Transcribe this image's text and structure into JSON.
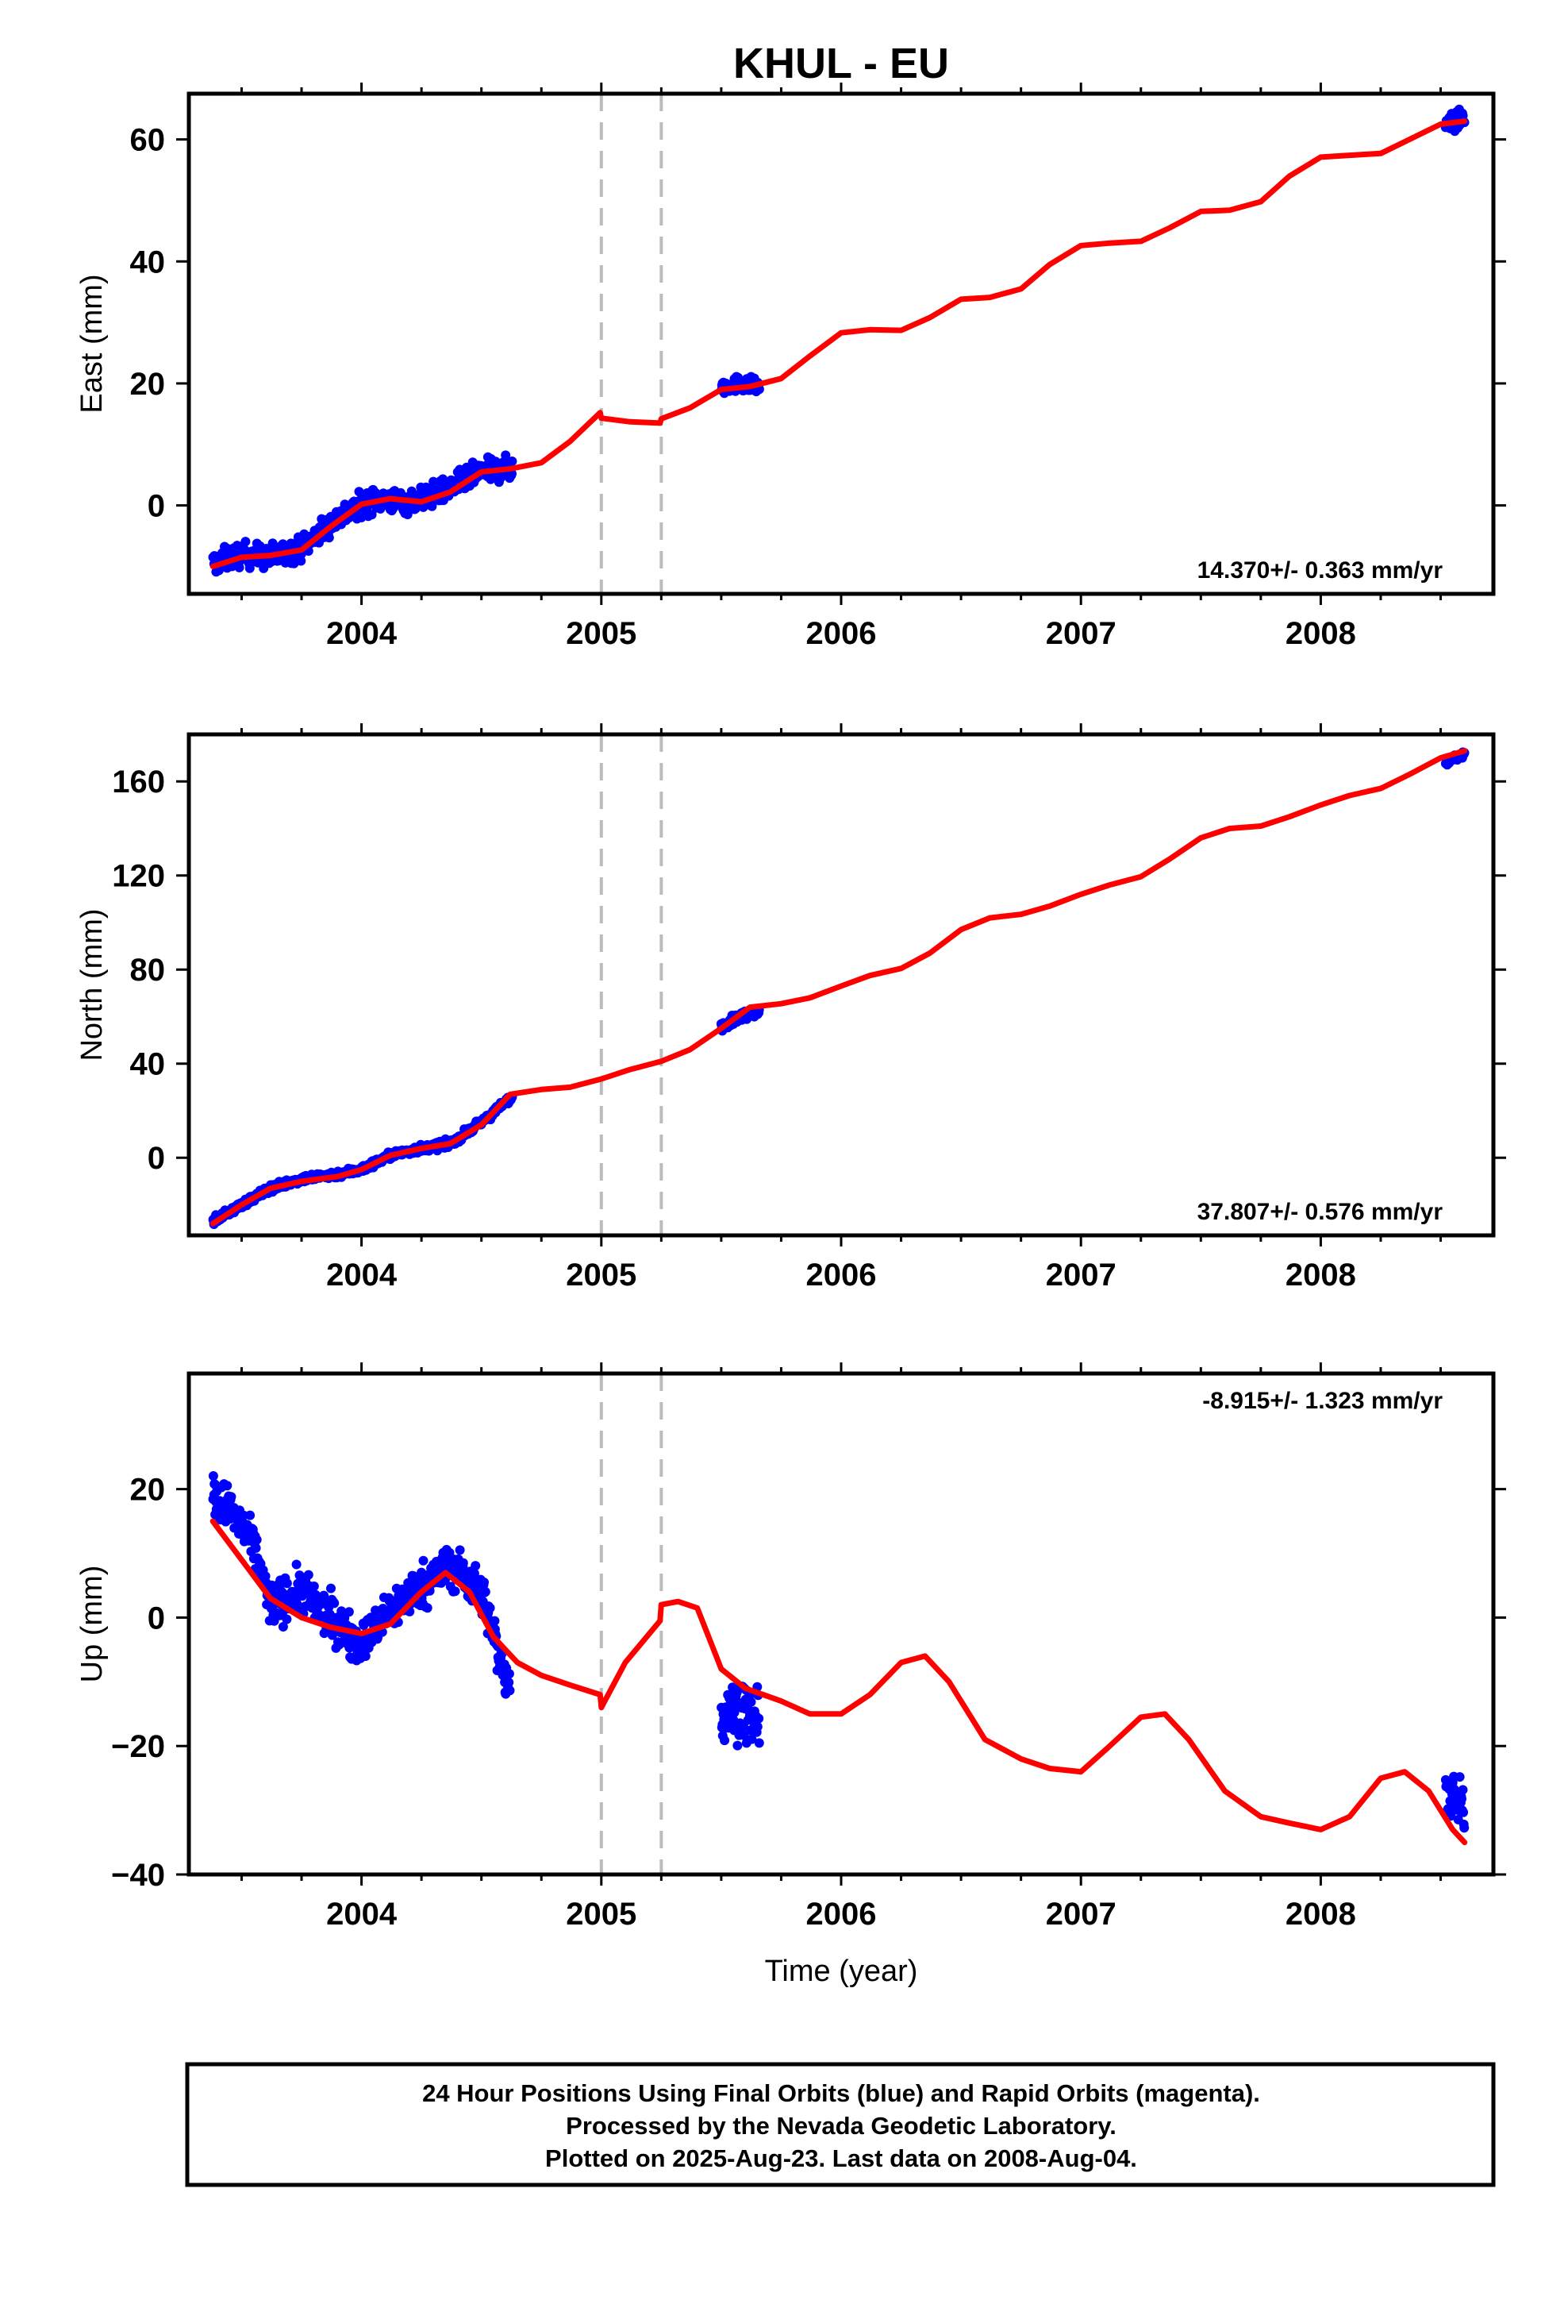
{
  "title": "KHUL - EU",
  "x_axis_label": "Time (year)",
  "footer": [
    "24 Hour Positions Using Final Orbits (blue) and Rapid Orbits (magenta).",
    "Processed by the Nevada Geodetic Laboratory.",
    "Plotted on 2025-Aug-23. Last data on 2008-Aug-04."
  ],
  "colors": {
    "final_orbits": "#0000ff",
    "model_fit": "#ff0000",
    "breaks": "#bbbbbb",
    "frame": "#000000"
  },
  "chart_data": [
    {
      "type": "scatter",
      "component": "east",
      "ylabel": "East (mm)",
      "xlim": [
        2003.28,
        2008.72
      ],
      "ylim": [
        -14.5,
        67.5
      ],
      "xticks": [
        "2004",
        "2005",
        "2006",
        "2007",
        "2008"
      ],
      "yticks": [
        "0",
        "20",
        "40",
        "60"
      ],
      "rate_label": "14.370+/- 0.363 mm/yr",
      "rate_position": "bottom-right",
      "break_lines": [
        2005.0,
        2005.25
      ],
      "series": [
        {
          "style": "points",
          "segments": [
            {
              "x_range": [
                2003.38,
                2004.63
              ],
              "anchors": [
                [
                  2003.38,
                  -9.5
                ],
                [
                  2003.5,
                  -8
                ],
                [
                  2003.62,
                  -8.5
                ],
                [
                  2003.75,
                  -7
                ],
                [
                  2003.9,
                  -2
                ],
                [
                  2004.05,
                  1
                ],
                [
                  2004.2,
                  0.5
                ],
                [
                  2004.35,
                  2.5
                ],
                [
                  2004.5,
                  5.5
                ],
                [
                  2004.63,
                  6
                ]
              ],
              "noise": 2.4
            },
            {
              "x_range": [
                2005.5,
                2005.66
              ],
              "anchors": [
                [
                  2005.5,
                  19.5
                ],
                [
                  2005.58,
                  20
                ],
                [
                  2005.66,
                  19.5
                ]
              ],
              "noise": 1.6
            },
            {
              "x_range": [
                2008.52,
                2008.6
              ],
              "anchors": [
                [
                  2008.52,
                  62.5
                ],
                [
                  2008.6,
                  63.5
                ]
              ],
              "noise": 1.8
            }
          ]
        },
        {
          "style": "line",
          "points": [
            [
              2003.38,
              -10
            ],
            [
              2003.5,
              -8.5
            ],
            [
              2003.62,
              -8.2
            ],
            [
              2003.75,
              -7.3
            ],
            [
              2003.87,
              -3.5
            ],
            [
              2004.0,
              0.2
            ],
            [
              2004.12,
              1.1
            ],
            [
              2004.25,
              0.6
            ],
            [
              2004.37,
              2.2
            ],
            [
              2004.5,
              5.5
            ],
            [
              2004.62,
              6
            ],
            [
              2004.75,
              7
            ],
            [
              2004.87,
              10.5
            ],
            [
              2004.995,
              15.2
            ],
            [
              2005.0,
              14.3
            ],
            [
              2005.12,
              13.7
            ],
            [
              2005.245,
              13.5
            ],
            [
              2005.25,
              14.2
            ],
            [
              2005.37,
              16
            ],
            [
              2005.5,
              19
            ],
            [
              2005.62,
              19.5
            ],
            [
              2005.75,
              20.8
            ],
            [
              2005.87,
              24.5
            ],
            [
              2006.0,
              28.3
            ],
            [
              2006.12,
              28.8
            ],
            [
              2006.25,
              28.7
            ],
            [
              2006.37,
              30.8
            ],
            [
              2006.5,
              33.8
            ],
            [
              2006.62,
              34.1
            ],
            [
              2006.75,
              35.5
            ],
            [
              2006.87,
              39.5
            ],
            [
              2007.0,
              42.6
            ],
            [
              2007.12,
              43
            ],
            [
              2007.25,
              43.3
            ],
            [
              2007.37,
              45.5
            ],
            [
              2007.5,
              48.2
            ],
            [
              2007.62,
              48.4
            ],
            [
              2007.75,
              49.8
            ],
            [
              2007.87,
              54
            ],
            [
              2008.0,
              57.1
            ],
            [
              2008.12,
              57.4
            ],
            [
              2008.25,
              57.7
            ],
            [
              2008.37,
              60
            ],
            [
              2008.5,
              62.5
            ],
            [
              2008.6,
              63
            ]
          ]
        }
      ]
    },
    {
      "type": "scatter",
      "component": "north",
      "ylabel": "North (mm)",
      "xlim": [
        2003.28,
        2008.72
      ],
      "ylim": [
        -33,
        180
      ],
      "xticks": [
        "2004",
        "2005",
        "2006",
        "2007",
        "2008"
      ],
      "yticks": [
        "0",
        "40",
        "80",
        "120",
        "160"
      ],
      "rate_label": "37.807+/- 0.576 mm/yr",
      "rate_position": "bottom-right",
      "break_lines": [
        2005.0,
        2005.25
      ],
      "series": [
        {
          "style": "points",
          "segments": [
            {
              "x_range": [
                2003.38,
                2004.63
              ],
              "anchors": [
                [
                  2003.38,
                  -27
                ],
                [
                  2003.5,
                  -20
                ],
                [
                  2003.62,
                  -13
                ],
                [
                  2003.75,
                  -9
                ],
                [
                  2003.9,
                  -7
                ],
                [
                  2004.0,
                  -5
                ],
                [
                  2004.12,
                  1
                ],
                [
                  2004.25,
                  4
                ],
                [
                  2004.37,
                  6
                ],
                [
                  2004.5,
                  15
                ],
                [
                  2004.63,
                  26
                ]
              ],
              "noise": 2.0
            },
            {
              "x_range": [
                2005.5,
                2005.66
              ],
              "anchors": [
                [
                  2005.5,
                  56
                ],
                [
                  2005.58,
                  60
                ],
                [
                  2005.66,
                  63
                ]
              ],
              "noise": 2.4
            },
            {
              "x_range": [
                2008.52,
                2008.6
              ],
              "anchors": [
                [
                  2008.52,
                  168
                ],
                [
                  2008.6,
                  172
                ]
              ],
              "noise": 2.0
            }
          ]
        },
        {
          "style": "line",
          "points": [
            [
              2003.38,
              -28
            ],
            [
              2003.5,
              -20
            ],
            [
              2003.62,
              -13
            ],
            [
              2003.75,
              -10
            ],
            [
              2003.9,
              -8
            ],
            [
              2004.0,
              -5
            ],
            [
              2004.12,
              1
            ],
            [
              2004.25,
              4
            ],
            [
              2004.37,
              6
            ],
            [
              2004.5,
              14
            ],
            [
              2004.62,
              27
            ],
            [
              2004.75,
              29
            ],
            [
              2004.87,
              30
            ],
            [
              2005.0,
              33.5
            ],
            [
              2005.12,
              37.5
            ],
            [
              2005.25,
              41
            ],
            [
              2005.37,
              46
            ],
            [
              2005.5,
              55
            ],
            [
              2005.62,
              64
            ],
            [
              2005.75,
              65.5
            ],
            [
              2005.87,
              68
            ],
            [
              2006.0,
              73
            ],
            [
              2006.12,
              77.5
            ],
            [
              2006.25,
              80.5
            ],
            [
              2006.37,
              87
            ],
            [
              2006.5,
              97
            ],
            [
              2006.62,
              102
            ],
            [
              2006.75,
              103.5
            ],
            [
              2006.87,
              107
            ],
            [
              2007.0,
              112
            ],
            [
              2007.12,
              116
            ],
            [
              2007.25,
              119.5
            ],
            [
              2007.37,
              127
            ],
            [
              2007.5,
              136
            ],
            [
              2007.62,
              140
            ],
            [
              2007.75,
              141
            ],
            [
              2007.87,
              145
            ],
            [
              2008.0,
              150
            ],
            [
              2008.12,
              154
            ],
            [
              2008.25,
              157
            ],
            [
              2008.37,
              163
            ],
            [
              2008.5,
              170
            ],
            [
              2008.6,
              173
            ]
          ]
        }
      ]
    },
    {
      "type": "scatter",
      "component": "up",
      "ylabel": "Up (mm)",
      "xlim": [
        2003.28,
        2008.72
      ],
      "ylim": [
        -40,
        38
      ],
      "xticks": [
        "2004",
        "2005",
        "2006",
        "2007",
        "2008"
      ],
      "yticks": [
        "-40",
        "-20",
        "0",
        "20"
      ],
      "rate_label": "-8.915+/- 1.323 mm/yr",
      "rate_position": "top-right",
      "break_lines": [
        2005.0,
        2005.25
      ],
      "series": [
        {
          "style": "points",
          "segments": [
            {
              "x_range": [
                2003.38,
                2004.62
              ],
              "anchors": [
                [
                  2003.38,
                  19
                ],
                [
                  2003.45,
                  17
                ],
                [
                  2003.55,
                  11
                ],
                [
                  2003.62,
                  2
                ],
                [
                  2003.75,
                  4
                ],
                [
                  2003.87,
                  0
                ],
                [
                  2004.0,
                  -4
                ],
                [
                  2004.12,
                  1
                ],
                [
                  2004.25,
                  5
                ],
                [
                  2004.37,
                  8
                ],
                [
                  2004.5,
                  4
                ],
                [
                  2004.6,
                  -9
                ]
              ],
              "noise": 4.2
            },
            {
              "x_range": [
                2005.5,
                2005.66
              ],
              "anchors": [
                [
                  2005.5,
                  -16
                ],
                [
                  2005.58,
                  -14
                ],
                [
                  2005.66,
                  -17
                ]
              ],
              "noise": 5.5
            },
            {
              "x_range": [
                2008.52,
                2008.6
              ],
              "anchors": [
                [
                  2008.52,
                  -27
                ],
                [
                  2008.6,
                  -30
                ]
              ],
              "noise": 4.5
            }
          ]
        },
        {
          "style": "line",
          "points": [
            [
              2003.38,
              15
            ],
            [
              2003.5,
              9
            ],
            [
              2003.62,
              3
            ],
            [
              2003.75,
              0
            ],
            [
              2003.87,
              -1.5
            ],
            [
              2004.0,
              -2.5
            ],
            [
              2004.12,
              -1
            ],
            [
              2004.25,
              4
            ],
            [
              2004.35,
              7
            ],
            [
              2004.45,
              4
            ],
            [
              2004.55,
              -3
            ],
            [
              2004.65,
              -7
            ],
            [
              2004.75,
              -9
            ],
            [
              2004.87,
              -10.5
            ],
            [
              2004.995,
              -12
            ],
            [
              2005.0,
              -14
            ],
            [
              2005.1,
              -7
            ],
            [
              2005.245,
              -0.5
            ],
            [
              2005.25,
              2
            ],
            [
              2005.32,
              2.5
            ],
            [
              2005.4,
              1.5
            ],
            [
              2005.5,
              -8
            ],
            [
              2005.6,
              -11
            ],
            [
              2005.75,
              -13
            ],
            [
              2005.87,
              -15
            ],
            [
              2006.0,
              -15
            ],
            [
              2006.12,
              -12
            ],
            [
              2006.25,
              -7
            ],
            [
              2006.35,
              -6
            ],
            [
              2006.45,
              -10
            ],
            [
              2006.6,
              -19
            ],
            [
              2006.75,
              -22
            ],
            [
              2006.87,
              -23.5
            ],
            [
              2007.0,
              -24
            ],
            [
              2007.12,
              -20
            ],
            [
              2007.25,
              -15.5
            ],
            [
              2007.35,
              -15
            ],
            [
              2007.45,
              -19
            ],
            [
              2007.6,
              -27
            ],
            [
              2007.75,
              -31
            ],
            [
              2007.87,
              -32
            ],
            [
              2008.0,
              -33
            ],
            [
              2008.12,
              -31
            ],
            [
              2008.25,
              -25
            ],
            [
              2008.35,
              -24
            ],
            [
              2008.45,
              -27
            ],
            [
              2008.55,
              -33
            ],
            [
              2008.6,
              -35
            ]
          ]
        }
      ]
    }
  ]
}
